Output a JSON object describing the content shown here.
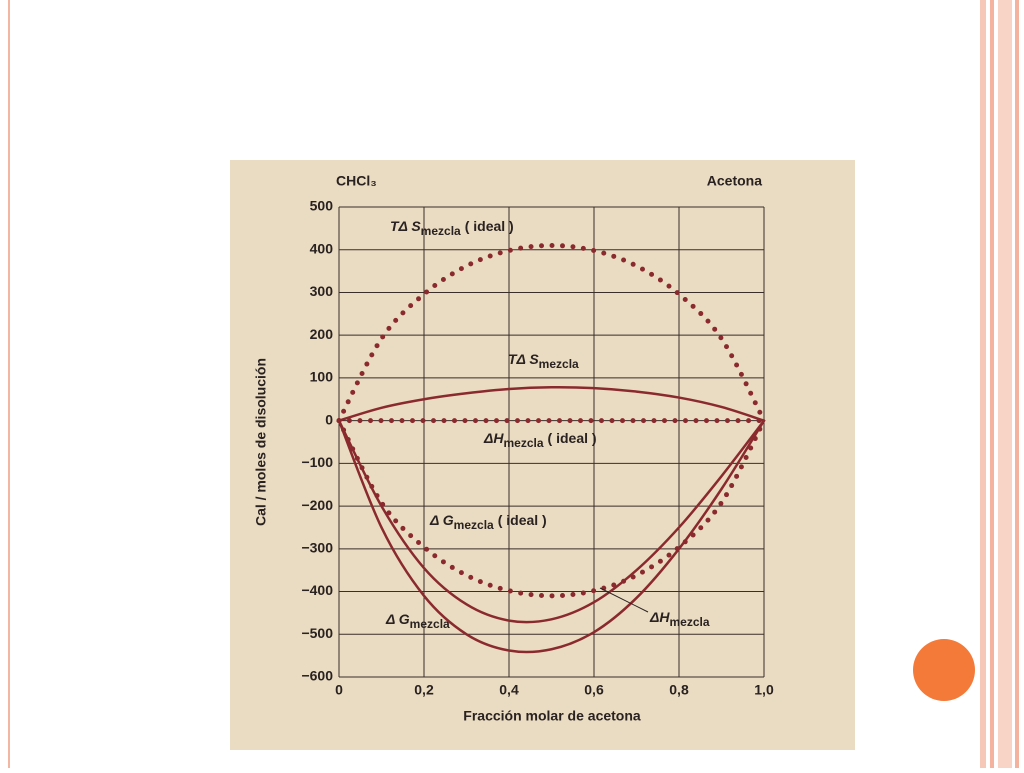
{
  "chart_data": {
    "type": "line",
    "corner_left": "CHCl₃",
    "corner_right": "Acetona",
    "x_label": "Fracción molar de acetona",
    "y_label": "Cal / moles de disolución",
    "x": [
      0,
      0.1,
      0.2,
      0.3,
      0.4,
      0.5,
      0.6,
      0.7,
      0.8,
      0.9,
      1.0
    ],
    "xlim": [
      0,
      1.0
    ],
    "xticks": [
      0,
      {
        "value": 0.2,
        "label": "0,2"
      },
      {
        "value": 0.4,
        "label": "0,4"
      },
      {
        "value": 0.6,
        "label": "0,6"
      },
      {
        "value": 0.8,
        "label": "0,8"
      },
      {
        "value": 1.0,
        "label": "1,0"
      }
    ],
    "ylim": [
      -600,
      500
    ],
    "yticks": [
      500,
      400,
      300,
      200,
      100,
      0,
      {
        "value": -100,
        "label": "−100"
      },
      {
        "value": -200,
        "label": "−200"
      },
      {
        "value": -300,
        "label": "−300"
      },
      {
        "value": -400,
        "label": "−400"
      },
      {
        "value": -500,
        "label": "−500"
      },
      {
        "value": -600,
        "label": "−600"
      }
    ],
    "grid": true,
    "series": [
      {
        "name": "TΔ S",
        "subscript": "mezcla",
        "qualifier": "( ideal )",
        "color": "#8a2a2e",
        "style": "dotted",
        "values": [
          0,
          192,
          296,
          362,
          398,
          410,
          398,
          362,
          296,
          192,
          0
        ]
      },
      {
        "name": "TΔ S",
        "subscript": "mezcla",
        "color": "#8a2a2e",
        "style": "solid",
        "values": [
          0,
          30,
          50,
          64,
          74,
          78,
          76,
          68,
          54,
          32,
          0
        ]
      },
      {
        "name": "ΔH",
        "subscript": "mezcla",
        "qualifier": "( ideal )",
        "color": "#8a2a2e",
        "style": "dotted",
        "values": [
          0,
          0,
          0,
          0,
          0,
          0,
          0,
          0,
          0,
          0,
          0
        ]
      },
      {
        "name": "Δ G",
        "subscript": "mezcla",
        "qualifier": "( ideal )",
        "color": "#8a2a2e",
        "style": "dotted",
        "values": [
          0,
          -192,
          -296,
          -362,
          -398,
          -410,
          -398,
          -362,
          -296,
          -192,
          0
        ]
      },
      {
        "name": "Δ G",
        "subscript": "mezcla",
        "color": "#8a2a2e",
        "style": "solid",
        "values": [
          0,
          -250,
          -410,
          -500,
          -538,
          -535,
          -495,
          -415,
          -300,
          -160,
          0
        ]
      },
      {
        "name": "ΔH",
        "subscript": "mezcla",
        "color": "#8a2a2e",
        "style": "solid",
        "values": [
          0,
          -200,
          -345,
          -430,
          -468,
          -465,
          -425,
          -350,
          -250,
          -130,
          0
        ]
      }
    ]
  }
}
